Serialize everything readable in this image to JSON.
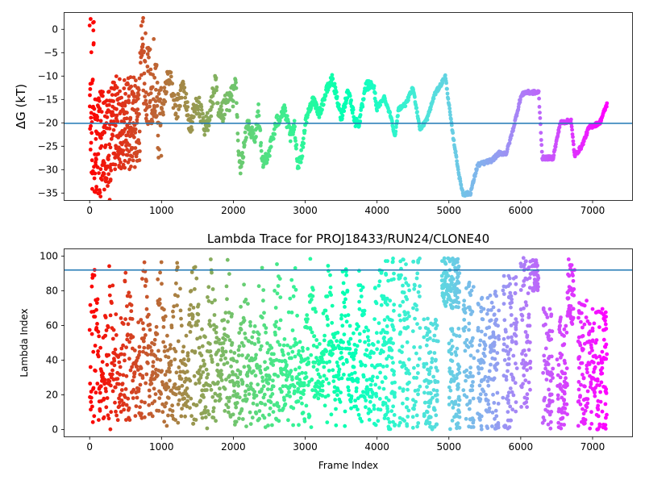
{
  "chart_data": [
    {
      "type": "scatter",
      "title": "",
      "xlabel": "",
      "ylabel": "ΔG (kT)",
      "xlim": [
        -350,
        7550
      ],
      "ylim": [
        -36.5,
        3.5
      ],
      "xticks": [
        0,
        1000,
        2000,
        3000,
        4000,
        5000,
        6000,
        7000
      ],
      "yticks": [
        0,
        -5,
        -10,
        -15,
        -20,
        -25,
        -30,
        -35
      ],
      "hline": -20.1,
      "hline_color": "#1f77b4",
      "colormap": "rainbow (reversed by frame index)",
      "grid": false,
      "frame_max": 7200,
      "trace_keypoints": [
        [
          700,
          3
        ],
        [
          760,
          -8
        ],
        [
          820,
          -13
        ],
        [
          900,
          -10
        ],
        [
          960,
          -20
        ],
        [
          1000,
          -18
        ],
        [
          1100,
          -9
        ],
        [
          1200,
          -18
        ],
        [
          1300,
          -12
        ],
        [
          1400,
          -21
        ],
        [
          1500,
          -15
        ],
        [
          1600,
          -22
        ],
        [
          1700,
          -16
        ],
        [
          1750,
          -11
        ],
        [
          1800,
          -20
        ],
        [
          1900,
          -16
        ],
        [
          2000,
          -14
        ],
        [
          2030,
          -10
        ],
        [
          2070,
          -26
        ],
        [
          2100,
          -30
        ],
        [
          2200,
          -20
        ],
        [
          2300,
          -24
        ],
        [
          2350,
          -17
        ],
        [
          2400,
          -29
        ],
        [
          2500,
          -26
        ],
        [
          2600,
          -20
        ],
        [
          2700,
          -17
        ],
        [
          2800,
          -23
        ],
        [
          2850,
          -21
        ],
        [
          2900,
          -29
        ],
        [
          2960,
          -26
        ],
        [
          3000,
          -20
        ],
        [
          3100,
          -15
        ],
        [
          3200,
          -18
        ],
        [
          3300,
          -13
        ],
        [
          3380,
          -10.5
        ],
        [
          3500,
          -19
        ],
        [
          3600,
          -13
        ],
        [
          3700,
          -20
        ],
        [
          3750,
          -20
        ],
        [
          3850,
          -12
        ],
        [
          3950,
          -12
        ],
        [
          4000,
          -17
        ],
        [
          4100,
          -14.5
        ],
        [
          4200,
          -19
        ],
        [
          4250,
          -23
        ],
        [
          4300,
          -17
        ],
        [
          4400,
          -16
        ],
        [
          4500,
          -12.5
        ],
        [
          4550,
          -17
        ],
        [
          4600,
          -21.5
        ],
        [
          4700,
          -19
        ],
        [
          4800,
          -14
        ],
        [
          4900,
          -11.5
        ],
        [
          4950,
          -10
        ],
        [
          5050,
          -22
        ],
        [
          5150,
          -32
        ],
        [
          5200,
          -35.3
        ],
        [
          5300,
          -35
        ],
        [
          5400,
          -29
        ],
        [
          5600,
          -28
        ],
        [
          5700,
          -26.5
        ],
        [
          5800,
          -26.5
        ],
        [
          5900,
          -21
        ],
        [
          6000,
          -14.5
        ],
        [
          6050,
          -13.5
        ],
        [
          6250,
          -13.5
        ],
        [
          6300,
          -27.5
        ],
        [
          6450,
          -27.5
        ],
        [
          6550,
          -20
        ],
        [
          6700,
          -19.5
        ],
        [
          6750,
          -27
        ],
        [
          6850,
          -25
        ],
        [
          6950,
          -21
        ],
        [
          7100,
          -20
        ],
        [
          7200,
          -16
        ]
      ]
    },
    {
      "type": "scatter",
      "title": "Lambda Trace for PROJ18433/RUN24/CLONE40",
      "xlabel": "Frame Index",
      "ylabel": "Lambda Index",
      "xlim": [
        -350,
        7550
      ],
      "ylim": [
        -4,
        104
      ],
      "xticks": [
        0,
        1000,
        2000,
        3000,
        4000,
        5000,
        6000,
        7000
      ],
      "yticks": [
        0,
        20,
        40,
        60,
        80,
        100
      ],
      "hline": 92,
      "hline_color": "#1f77b4",
      "colormap": "rainbow (reversed by frame index)",
      "grid": false,
      "frame_max": 7200,
      "lambda_range": [
        0,
        99
      ]
    }
  ]
}
